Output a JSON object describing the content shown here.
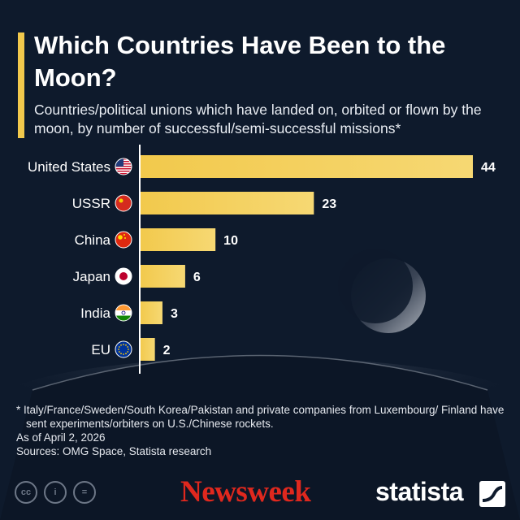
{
  "header": {
    "title": "Which Countries Have Been to the Moon?",
    "subtitle": "Countries/political unions which have landed on, orbited or flown by the moon, by number of successful/semi-successful missions*"
  },
  "chart_data": {
    "type": "bar",
    "orientation": "horizontal",
    "title": "Which Countries Have Been to the Moon?",
    "categories": [
      "United States",
      "USSR",
      "China",
      "Japan",
      "India",
      "EU"
    ],
    "values": [
      44,
      23,
      10,
      6,
      3,
      2
    ],
    "flag_icons": [
      "us-flag-icon",
      "ussr-flag-icon",
      "china-flag-icon",
      "japan-flag-icon",
      "india-flag-icon",
      "eu-flag-icon"
    ],
    "value_labels": [
      "44",
      "23",
      "10",
      "6",
      "3",
      "2"
    ],
    "xlim": [
      0,
      44
    ],
    "grid": false,
    "legend": "none"
  },
  "colors": {
    "background": "#0e1a2c",
    "bar": "#f2c94c",
    "bar_light": "#f6d873",
    "accent": "#f2c94c",
    "newsweek": "#e0281e"
  },
  "footnote": {
    "note": "* Italy/France/Sweden/South Korea/Pakistan and private companies from Luxembourg/ Finland have sent experiments/orbiters on U.S./Chinese rockets.",
    "as_of": "As of April 2, 2026",
    "sources": "Sources: OMG Space, Statista research"
  },
  "branding": {
    "newsweek": "Newsweek",
    "statista": "statista",
    "license_icons": [
      "cc-icon",
      "by-person-icon",
      "nd-equals-icon"
    ],
    "license_labels": [
      "cc",
      "i",
      "="
    ]
  }
}
